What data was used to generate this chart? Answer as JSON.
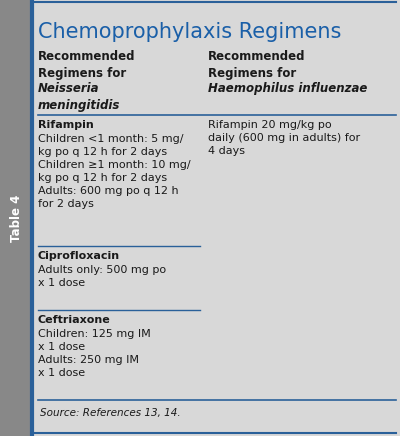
{
  "title": "Chemoprophylaxis Regimens",
  "table_label": "Table 4",
  "background_color": "#d8d8d8",
  "title_color": "#1a5fa8",
  "tab_bg_color": "#888888",
  "border_color": "#2a6099",
  "line_color": "#2a6099",
  "source_text": "Source: References 13, 14.",
  "text_color": "#1a1a1a",
  "font_size": 8.0,
  "header_font_size": 8.5,
  "title_font_size": 15.0,
  "tab_font_size": 8.5,
  "fig_width": 4.0,
  "fig_height": 4.36
}
